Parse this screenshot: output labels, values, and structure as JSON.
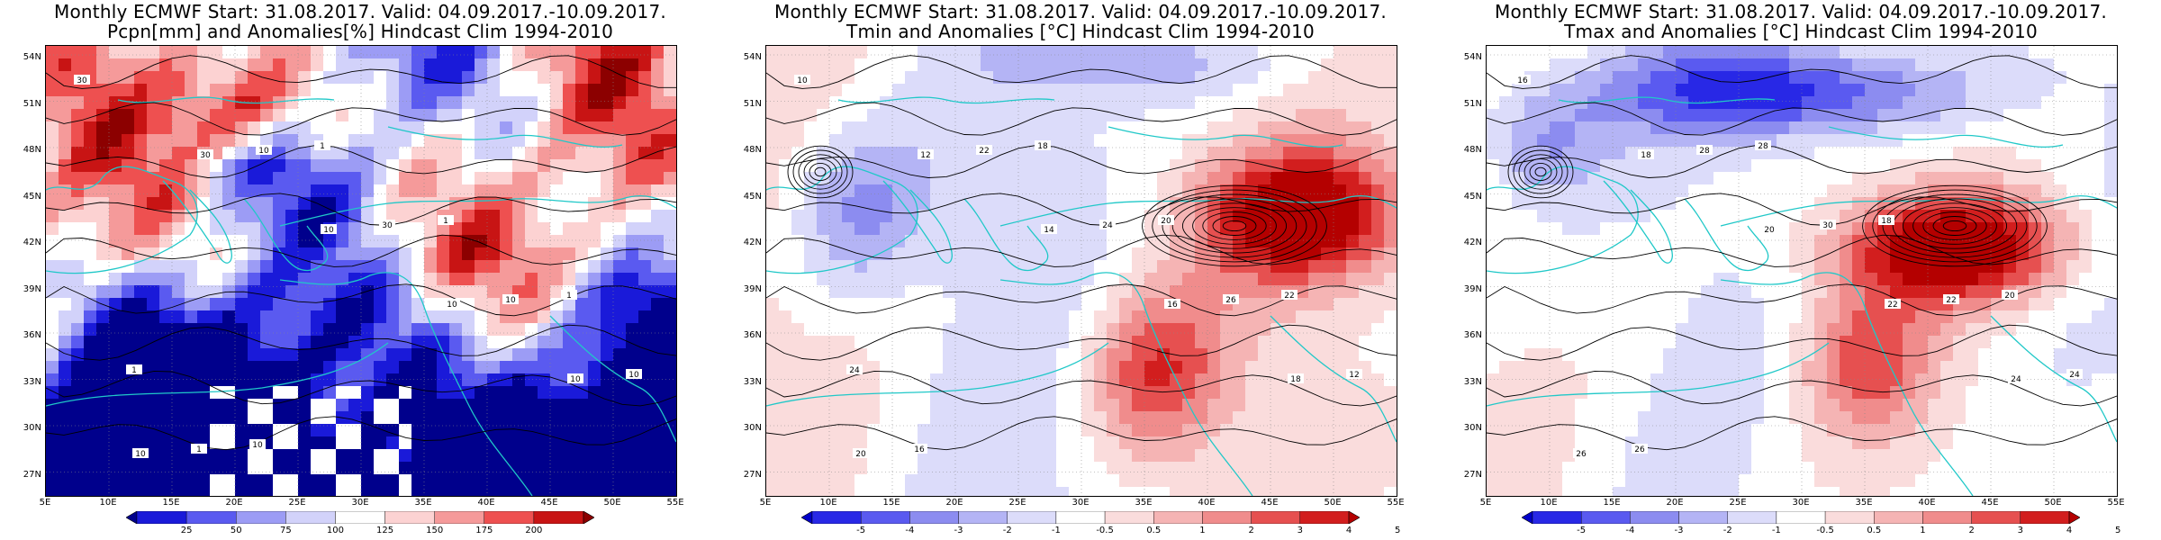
{
  "panels": [
    {
      "id": "pcpn",
      "title_line1": "Monthly ECMWF Start: 31.08.2017. Valid: 04.09.2017.-10.09.2017.",
      "title_line2": "Pcpn[mm] and Anomalies[%] Hindcast Clim 1994-2010",
      "colorbar_labels": [
        "25",
        "50",
        "75",
        "100",
        "125",
        "150",
        "175",
        "200"
      ],
      "contour_labels": [
        "30",
        "30",
        "10",
        "10",
        "10",
        "10",
        "10",
        "30",
        "10",
        "10",
        "1",
        "1",
        "1",
        "1",
        "1",
        "10"
      ],
      "field": "pcpn"
    },
    {
      "id": "tmin",
      "title_line1": "Monthly ECMWF Start: 31.08.2017. Valid: 04.09.2017.-10.09.2017.",
      "title_line2": "Tmin and Anomalies [°C] Hindcast Clim 1994-2010",
      "colorbar_labels": [
        "-5",
        "-4",
        "-3",
        "-2",
        "-1",
        "-0.5",
        "0.5",
        "1",
        "2",
        "3",
        "4",
        "5"
      ],
      "contour_labels": [
        "10",
        "12",
        "14",
        "16",
        "18",
        "20",
        "22",
        "24",
        "26",
        "12",
        "16",
        "18",
        "20",
        "22",
        "24"
      ],
      "field": "tmin"
    },
    {
      "id": "tmax",
      "title_line1": "Monthly ECMWF Start: 31.08.2017. Valid: 04.09.2017.-10.09.2017.",
      "title_line2": "Tmax and Anomalies [°C] Hindcast Clim 1994-2010",
      "colorbar_labels": [
        "-5",
        "-4",
        "-3",
        "-2",
        "-1",
        "-0.5",
        "0.5",
        "1",
        "2",
        "3",
        "4",
        "5"
      ],
      "contour_labels": [
        "16",
        "18",
        "20",
        "22",
        "24",
        "26",
        "28",
        "30",
        "22",
        "24",
        "26",
        "28",
        "18",
        "20"
      ],
      "field": "tmax"
    }
  ],
  "lat_labels": [
    "54N",
    "51N",
    "48N",
    "45N",
    "42N",
    "39N",
    "36N",
    "33N",
    "30N",
    "27N"
  ],
  "lon_labels": [
    "5E",
    "10E",
    "15E",
    "20E",
    "25E",
    "30E",
    "35E",
    "40E",
    "45E",
    "50E",
    "55E"
  ],
  "colors": {
    "pcpn_scale": [
      "#00008c",
      "#1a1ad9",
      "#5a5af0",
      "#9c9cf5",
      "#d2d2fa",
      "#ffffff",
      "#fcd2d2",
      "#f59a9a",
      "#ee5050",
      "#c81414",
      "#8c0000"
    ],
    "temp_scale": [
      "#0000c8",
      "#2828e6",
      "#5a5af0",
      "#8c8cf0",
      "#b4b4f5",
      "#dcdcfa",
      "#ffffff",
      "#fadcdc",
      "#f5b4b4",
      "#f08c8c",
      "#e65050",
      "#d21e1e",
      "#b40000"
    ],
    "coast": "#20c8c8",
    "contour": "#000000"
  }
}
